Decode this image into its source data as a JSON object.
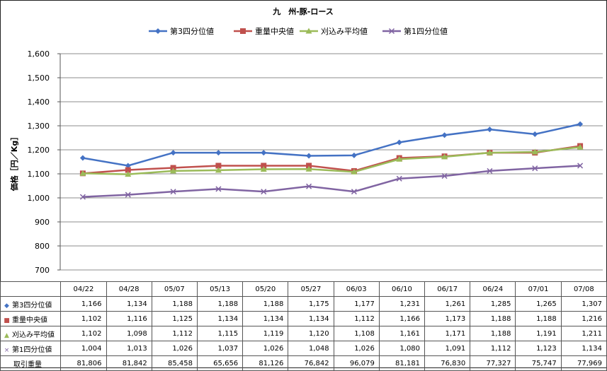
{
  "chart_data": {
    "type": "line",
    "title": "九　州-豚-ロース",
    "xlabel": "",
    "ylabel": "価格［円／Kg］",
    "categories": [
      "04/22",
      "04/28",
      "05/07",
      "05/13",
      "05/20",
      "05/27",
      "06/03",
      "06/10",
      "06/17",
      "06/24",
      "07/01",
      "07/08"
    ],
    "ylim": [
      700,
      1600
    ],
    "yticks": [
      "700",
      "800",
      "900",
      "1,000",
      "1,100",
      "1,200",
      "1,300",
      "1,400",
      "1,500",
      "1,600"
    ],
    "grid": "horizontal",
    "legend": "top",
    "series": [
      {
        "name": "第3四分位値",
        "color": "#4472C4",
        "marker": "diamond",
        "values": [
          1166,
          1134,
          1188,
          1188,
          1188,
          1175,
          1177,
          1231,
          1261,
          1285,
          1265,
          1307
        ],
        "labels": [
          "1,166",
          "1,134",
          "1,188",
          "1,188",
          "1,188",
          "1,175",
          "1,177",
          "1,231",
          "1,261",
          "1,285",
          "1,265",
          "1,307"
        ]
      },
      {
        "name": "重量中央値",
        "color": "#C0504D",
        "marker": "square",
        "values": [
          1102,
          1116,
          1125,
          1134,
          1134,
          1134,
          1112,
          1166,
          1173,
          1188,
          1188,
          1216
        ],
        "labels": [
          "1,102",
          "1,116",
          "1,125",
          "1,134",
          "1,134",
          "1,134",
          "1,112",
          "1,166",
          "1,173",
          "1,188",
          "1,188",
          "1,216"
        ]
      },
      {
        "name": "刈込み平均値",
        "color": "#9BBB59",
        "marker": "triangle",
        "values": [
          1102,
          1098,
          1112,
          1115,
          1119,
          1120,
          1108,
          1161,
          1171,
          1188,
          1191,
          1211
        ],
        "labels": [
          "1,102",
          "1,098",
          "1,112",
          "1,115",
          "1,119",
          "1,120",
          "1,108",
          "1,161",
          "1,171",
          "1,188",
          "1,191",
          "1,211"
        ]
      },
      {
        "name": "第1四分位値",
        "color": "#8064A2",
        "marker": "x",
        "values": [
          1004,
          1013,
          1026,
          1037,
          1026,
          1048,
          1026,
          1080,
          1091,
          1112,
          1123,
          1134
        ],
        "labels": [
          "1,004",
          "1,013",
          "1,026",
          "1,037",
          "1,026",
          "1,048",
          "1,026",
          "1,080",
          "1,091",
          "1,112",
          "1,123",
          "1,134"
        ]
      }
    ],
    "extra_row": {
      "name": "取引重量",
      "values": [
        "81,806",
        "81,842",
        "85,458",
        "65,656",
        "81,126",
        "76,842",
        "96,079",
        "81,181",
        "76,830",
        "77,327",
        "75,747",
        "77,969"
      ]
    }
  }
}
